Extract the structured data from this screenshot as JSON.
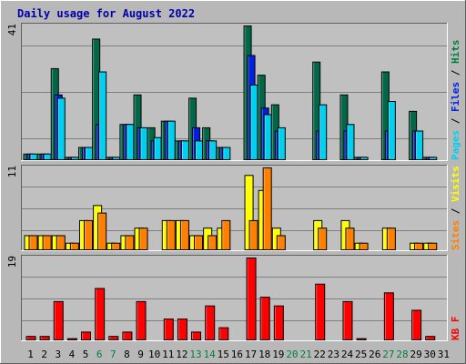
{
  "chart_data": {
    "type": "bar",
    "title": "Daily usage for August 2022",
    "x": [
      "1",
      "2",
      "3",
      "4",
      "5",
      "6",
      "7",
      "8",
      "9",
      "10",
      "11",
      "12",
      "13",
      "14",
      "15",
      "16",
      "17",
      "18",
      "19",
      "20",
      "21",
      "22",
      "23",
      "24",
      "25",
      "26",
      "27",
      "28",
      "29",
      "30",
      "31"
    ],
    "weekend_days": [
      "6",
      "7",
      "13",
      "14",
      "20",
      "21",
      "27",
      "28"
    ],
    "colors": {
      "hits": "#006848",
      "files": "#0020e0",
      "pages": "#00d0f0",
      "visits": "#ffff00",
      "sites": "#ff8000",
      "kbytes": "#ff0000",
      "weekday_label": "#000000",
      "weekend_label": "#008040",
      "grid": "#808080",
      "panel": "#c0c0c0",
      "frame": "#b8b8b8"
    },
    "panels": [
      {
        "key": "traffic",
        "ymax_label": "41",
        "ylim": [
          0,
          41
        ],
        "right_label": [
          {
            "text": "Pages",
            "color": "#00d0f0"
          },
          {
            "text": " / ",
            "color": "#000000"
          },
          {
            "text": "Files",
            "color": "#0020e0"
          },
          {
            "text": " / ",
            "color": "#000000"
          },
          {
            "text": "Hits",
            "color": "#008040"
          }
        ],
        "series": [
          {
            "name": "Hits",
            "values": [
              2,
              2,
              28,
              1,
              4,
              37,
              1,
              11,
              20,
              10,
              12,
              6,
              19,
              10,
              4,
              0,
              41,
              26,
              17,
              0,
              0,
              30,
              0,
              20,
              1,
              0,
              27,
              0,
              15,
              1,
              0
            ]
          },
          {
            "name": "Files",
            "values": [
              2,
              2,
              20,
              1,
              4,
              11,
              1,
              11,
              10,
              6,
              12,
              6,
              10,
              6,
              4,
              0,
              32,
              16,
              9,
              0,
              0,
              9,
              0,
              9,
              1,
              0,
              9,
              0,
              9,
              1,
              0
            ]
          },
          {
            "name": "Pages",
            "values": [
              2,
              2,
              19,
              1,
              4,
              27,
              1,
              11,
              10,
              7,
              12,
              6,
              6,
              6,
              4,
              0,
              23,
              14,
              10,
              0,
              0,
              17,
              0,
              11,
              1,
              0,
              18,
              0,
              9,
              1,
              0
            ]
          }
        ]
      },
      {
        "key": "visitors",
        "ymax_label": "11",
        "ylim": [
          0,
          11
        ],
        "right_label": [
          {
            "text": "Sites",
            "color": "#ff8000"
          },
          {
            "text": " / ",
            "color": "#000000"
          },
          {
            "text": "Visits",
            "color": "#ffff00"
          }
        ],
        "series": [
          {
            "name": "Visits",
            "values": [
              2,
              2,
              2,
              1,
              4,
              6,
              1,
              2,
              3,
              0,
              4,
              4,
              2,
              3,
              3,
              0,
              10,
              8,
              3,
              0,
              0,
              4,
              0,
              4,
              1,
              0,
              3,
              0,
              1,
              1,
              0
            ]
          },
          {
            "name": "Sites",
            "values": [
              2,
              2,
              2,
              1,
              4,
              5,
              1,
              2,
              3,
              0,
              4,
              4,
              2,
              2,
              4,
              0,
              4,
              11,
              2,
              0,
              0,
              3,
              0,
              3,
              1,
              0,
              3,
              0,
              1,
              1,
              0
            ]
          }
        ]
      },
      {
        "key": "kbytes",
        "ymax_label": "19",
        "ylim": [
          0,
          19
        ],
        "right_label": [
          {
            "text": "KB F",
            "color": "#ff0000"
          }
        ],
        "series": [
          {
            "name": "KB F",
            "values": [
              1,
              1,
              9,
              0.5,
              2,
              12,
              1,
              2,
              9,
              0,
              5,
              5,
              2,
              8,
              3,
              0,
              19,
              10,
              8,
              0,
              0,
              13,
              0,
              9,
              0.5,
              0,
              11,
              0,
              7,
              1,
              0
            ]
          }
        ]
      }
    ]
  }
}
